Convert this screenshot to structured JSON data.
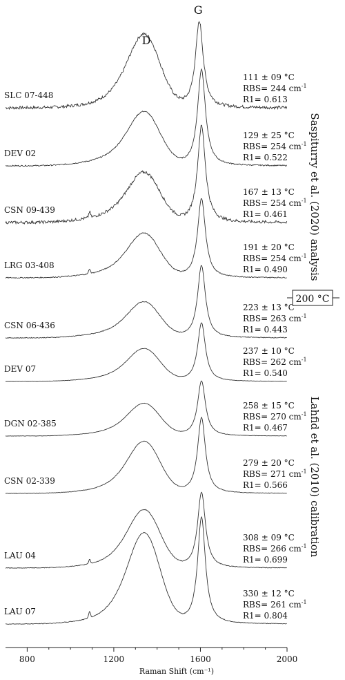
{
  "chart_data": {
    "type": "line",
    "xlabel": "Raman Shift (cm⁻¹)",
    "xlim": [
      700,
      2000
    ],
    "xticks": [
      800,
      1200,
      1600,
      2000
    ],
    "peak_labels": [
      "D",
      "G"
    ],
    "group_labels": [
      "Saspiturry et al. (2020) analysis",
      "Lahfid et al. (2010) calibration"
    ],
    "threshold_label": "200 °C",
    "series": [
      {
        "name": "SLC 07-448",
        "temperature": "111 ± 09 °C",
        "rbs": "RBS= 244 cm",
        "r1": "R1= 0.613",
        "rbs_cm": 244,
        "r1_value": 0.613,
        "d_height": 0.8,
        "g_height": 1.0
      },
      {
        "name": "DEV 02",
        "temperature": "129 ± 25 °C",
        "rbs": "RBS= 254 cm",
        "r1": "R1= 0.522",
        "rbs_cm": 254,
        "r1_value": 0.522,
        "d_height": 0.52,
        "g_height": 1.0
      },
      {
        "name": "CSN 09-439",
        "temperature": "167 ± 13 °C",
        "rbs": "RBS= 254 cm",
        "r1": "R1= 0.461",
        "rbs_cm": 254,
        "r1_value": 0.461,
        "d_height": 0.48,
        "g_height": 1.0
      },
      {
        "name": "LRG 03-408",
        "temperature": "191 ± 20 °C",
        "rbs": "RBS= 254 cm",
        "r1": "R1= 0.490",
        "rbs_cm": 254,
        "r1_value": 0.49,
        "d_height": 0.52,
        "g_height": 1.0
      },
      {
        "name": "CSN 06-436",
        "temperature": "223 ± 13 °C",
        "rbs": "RBS= 263 cm",
        "r1": "R1= 0.443",
        "rbs_cm": 263,
        "r1_value": 0.443,
        "d_height": 0.46,
        "g_height": 1.0
      },
      {
        "name": "DEV 07",
        "temperature": "237 ± 10 °C",
        "rbs": "RBS= 262 cm",
        "r1": "R1= 0.540",
        "rbs_cm": 262,
        "r1_value": 0.54,
        "d_height": 0.52,
        "g_height": 1.0
      },
      {
        "name": "DGN 02-385",
        "temperature": "258 ± 15 °C",
        "rbs": "RBS= 270 cm",
        "r1": "R1= 0.467",
        "rbs_cm": 270,
        "r1_value": 0.467,
        "d_height": 0.55,
        "g_height": 1.0
      },
      {
        "name": "CSN 02-339",
        "temperature": "279 ± 20 °C",
        "rbs": "RBS= 271 cm",
        "r1": "R1= 0.566",
        "rbs_cm": 271,
        "r1_value": 0.566,
        "d_height": 0.64,
        "g_height": 1.0
      },
      {
        "name": "LAU 04",
        "temperature": "308 ± 09 °C",
        "rbs": "RBS= 266 cm",
        "r1": "R1= 0.699",
        "rbs_cm": 266,
        "r1_value": 0.699,
        "d_height": 0.72,
        "g_height": 1.0
      },
      {
        "name": "LAU 07",
        "temperature": "330 ± 12 °C",
        "rbs": "RBS= 261 cm",
        "r1": "R1= 0.804",
        "rbs_cm": 261,
        "r1_value": 0.804,
        "d_height": 0.8,
        "g_height": 1.0
      }
    ],
    "unit_superscript": "-1",
    "grid": false,
    "line_color": "#333333"
  }
}
